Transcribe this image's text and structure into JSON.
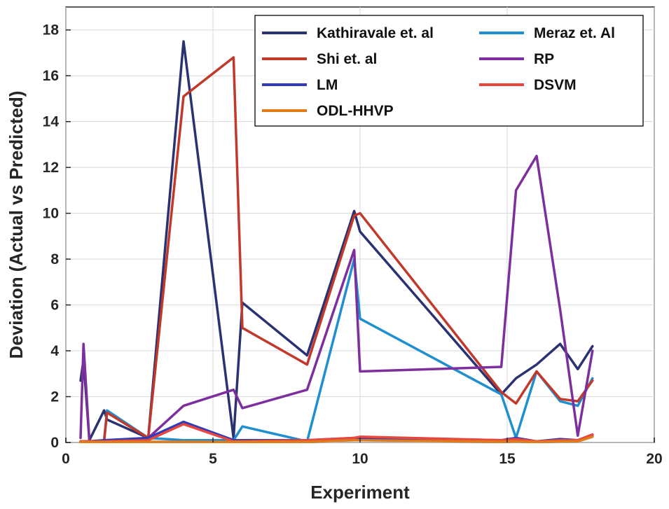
{
  "chart_data": {
    "type": "line",
    "title": "",
    "xlabel": "Experiment",
    "ylabel": "Deviation (Actual vs Predicted)",
    "xlim": [
      0,
      20
    ],
    "ylim": [
      0,
      19
    ],
    "xticks": [
      0,
      5,
      10,
      15,
      20
    ],
    "xtick_labels": [
      "0",
      "5",
      "10",
      "15",
      "20"
    ],
    "yticks": [
      0,
      2,
      4,
      6,
      8,
      10,
      12,
      14,
      16,
      18
    ],
    "ytick_labels": [
      "0",
      "2",
      "4",
      "6",
      "8",
      "10",
      "12",
      "14",
      "16",
      "18"
    ],
    "grid": true,
    "legend_position": "top-right",
    "series": [
      {
        "name": "Kathiravale et. al",
        "color": "#2b3271",
        "x": [
          0.5,
          0.6,
          0.8,
          1.3,
          1.4,
          2.8,
          4.0,
          5.7,
          6.0,
          8.2,
          9.8,
          10.0,
          14.8,
          15.3,
          16.0,
          16.8,
          17.4,
          17.9
        ],
        "y": [
          2.7,
          3.6,
          0.1,
          1.4,
          1.0,
          0.2,
          17.5,
          0.2,
          6.1,
          3.8,
          10.1,
          9.2,
          2.1,
          2.8,
          3.4,
          4.3,
          3.2,
          4.2
        ]
      },
      {
        "name": "Meraz et. Al",
        "color": "#1f8fcf",
        "x": [
          0.5,
          0.6,
          0.8,
          1.3,
          1.4,
          2.8,
          4.0,
          5.7,
          6.0,
          8.2,
          9.8,
          10.0,
          14.8,
          15.3,
          16.0,
          16.8,
          17.4,
          17.9
        ],
        "y": [
          0.05,
          0.05,
          0.05,
          0.1,
          1.4,
          0.2,
          0.1,
          0.1,
          0.7,
          0.05,
          8.0,
          5.4,
          2.1,
          0.2,
          3.1,
          1.8,
          1.6,
          2.8
        ]
      },
      {
        "name": "Shi et. al",
        "color": "#c0392b",
        "x": [
          0.5,
          0.8,
          1.3,
          1.4,
          2.8,
          4.0,
          5.7,
          6.0,
          8.2,
          9.8,
          10.0,
          14.8,
          15.3,
          16.0,
          16.8,
          17.4,
          17.9
        ],
        "y": [
          0.05,
          0.05,
          0.05,
          1.3,
          0.2,
          15.1,
          16.8,
          5.0,
          3.4,
          9.9,
          10.0,
          2.2,
          1.7,
          3.1,
          1.9,
          1.8,
          2.7
        ]
      },
      {
        "name": "RP",
        "color": "#7d2f9e",
        "x": [
          0.5,
          0.6,
          0.8,
          1.3,
          2.8,
          4.0,
          5.7,
          6.0,
          8.2,
          9.8,
          10.0,
          14.8,
          15.3,
          16.0,
          16.8,
          17.4,
          17.9
        ],
        "y": [
          0.2,
          4.3,
          0.05,
          0.05,
          0.2,
          1.6,
          2.3,
          1.5,
          2.3,
          8.4,
          3.1,
          3.3,
          11.0,
          12.5,
          5.8,
          0.3,
          4.0
        ]
      },
      {
        "name": "LM",
        "color": "#2f3bb8",
        "x": [
          0.5,
          0.8,
          1.3,
          2.8,
          4.0,
          5.7,
          6.0,
          8.2,
          9.8,
          10.0,
          14.8,
          15.3,
          16.0,
          16.8,
          17.4,
          17.9
        ],
        "y": [
          0.05,
          0.05,
          0.1,
          0.2,
          0.9,
          0.1,
          0.1,
          0.1,
          0.2,
          0.2,
          0.1,
          0.2,
          0.05,
          0.15,
          0.1,
          0.3
        ]
      },
      {
        "name": "DSVM",
        "color": "#e8473f",
        "x": [
          0.5,
          0.8,
          1.3,
          2.8,
          4.0,
          5.7,
          6.0,
          8.2,
          9.8,
          10.0,
          14.8,
          15.3,
          16.0,
          16.8,
          17.4,
          17.9
        ],
        "y": [
          0.05,
          0.05,
          0.05,
          0.1,
          0.8,
          0.05,
          0.05,
          0.1,
          0.2,
          0.25,
          0.1,
          0.15,
          0.05,
          0.1,
          0.1,
          0.35
        ]
      },
      {
        "name": "ODL-HHVP",
        "color": "#e07b1a",
        "x": [
          0.5,
          0.8,
          1.3,
          2.8,
          4.0,
          5.7,
          6.0,
          8.2,
          9.8,
          10.0,
          14.8,
          15.3,
          16.0,
          16.8,
          17.4,
          17.9
        ],
        "y": [
          0.02,
          0.02,
          0.02,
          0.03,
          0.03,
          0.02,
          0.02,
          0.03,
          0.1,
          0.1,
          0.03,
          0.05,
          0.02,
          0.05,
          0.05,
          0.25
        ]
      }
    ],
    "legend_order": [
      "Kathiravale et. al",
      "Meraz et. Al",
      "Shi et. al",
      "RP",
      "LM",
      "DSVM",
      "ODL-HHVP"
    ]
  }
}
